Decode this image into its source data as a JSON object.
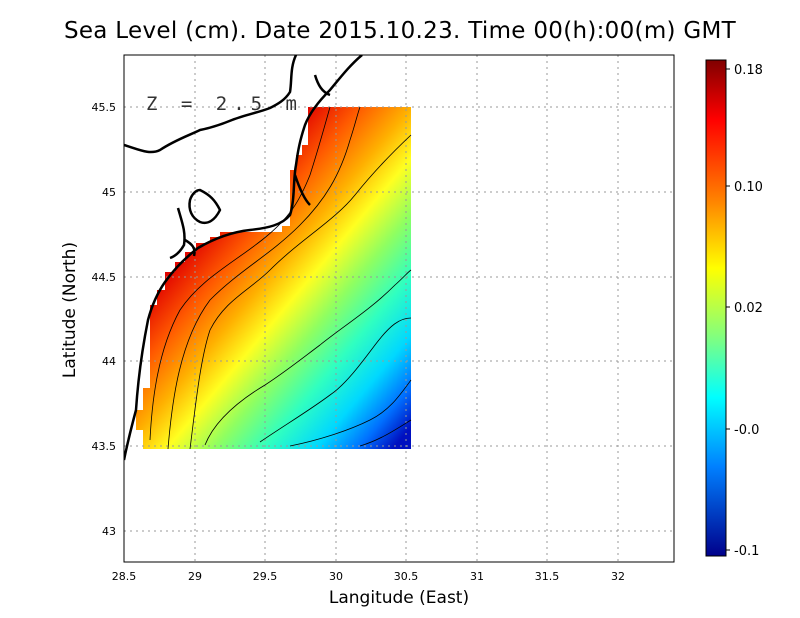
{
  "title": "Sea Level (cm). Date 2015.10.23. Time 00(h):00(m) GMT",
  "xlabel": "Langitude (East)",
  "ylabel": "Latitude (North)",
  "depth_label": "Z = 2.5 m",
  "x_ticks": [
    "28.5",
    "29",
    "29.5",
    "30",
    "30.5",
    "31",
    "31.5",
    "32"
  ],
  "y_ticks": [
    "45.5",
    "45",
    "44.5",
    "44",
    "43.5",
    "43"
  ],
  "colorbar_ticks": [
    "0.18",
    "0.10",
    "0.02",
    "-0.0",
    "-0.1"
  ],
  "colors": {
    "high": "#8b0000",
    "mid": "#ffff00",
    "low": "#00008b"
  },
  "chart_data": {
    "type": "heatmap",
    "variable": "Sea Level (cm)",
    "xlim": [
      28.5,
      32.4
    ],
    "ylim": [
      42.8,
      45.8
    ],
    "data_extent": {
      "lon": [
        28.6,
        30.55
      ],
      "lat": [
        43.5,
        45.5
      ]
    },
    "colorbar": {
      "min": -0.1,
      "max": 0.18,
      "ticks": [
        0.18,
        0.1,
        0.02,
        -0.0,
        -0.1
      ]
    },
    "grid": true,
    "trend": "values highest along the western coast (~0.18) decreasing toward the southeast (~-0.06)"
  }
}
